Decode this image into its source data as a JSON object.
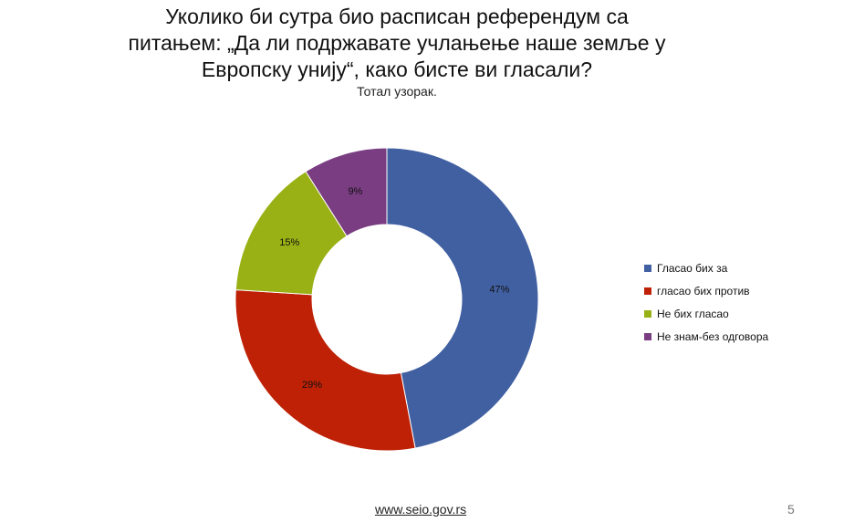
{
  "header": {
    "title_lines": [
      "Уколико би сутра био расписан референдум са",
      "питањем: „Да ли подржавате учлањење наше земље у",
      "Европску унију“, како бисте ви гласали?"
    ],
    "subtitle": "Тотал узорак."
  },
  "chart_data": {
    "type": "pie",
    "donut": true,
    "categories": [
      "Гласао бих за",
      "гласао бих против",
      "Не бих гласао",
      "Не знам-без одговора"
    ],
    "values": [
      47,
      29,
      15,
      9
    ],
    "value_labels": [
      "47%",
      "29%",
      "15%",
      "9%"
    ],
    "colors": [
      "#4160A2",
      "#BE2106",
      "#99B114",
      "#7A3D82"
    ],
    "legend_position": "right"
  },
  "footer": {
    "url": "www.seio.gov.rs",
    "page": "5"
  }
}
